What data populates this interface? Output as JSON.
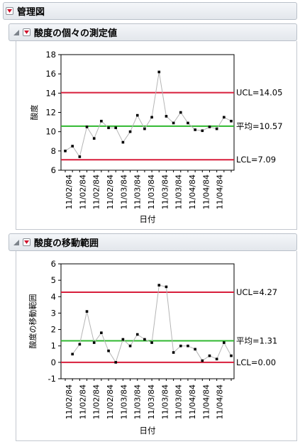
{
  "report": {
    "title": "管理図"
  },
  "charts": [
    {
      "section_title": "酸度の個々の測定値",
      "chart_data": {
        "type": "line",
        "title": "",
        "xlabel": "日付",
        "ylabel": "酸度",
        "ylim": [
          6,
          18
        ],
        "yticks": [
          6,
          8,
          10,
          12,
          14,
          16,
          18
        ],
        "x_tick_labels": [
          "11/02/84",
          "11/02/84",
          "11/02/84",
          "11/02/84",
          "11/03/84",
          "11/03/84",
          "11/03/84",
          "11/03/84",
          "11/03/84",
          "11/04/84",
          "11/04/84",
          "11/04/84"
        ],
        "values": [
          8.0,
          8.5,
          7.4,
          10.5,
          9.3,
          11.1,
          10.4,
          10.4,
          8.9,
          10.0,
          11.7,
          10.3,
          11.5,
          16.2,
          11.6,
          10.9,
          12.0,
          10.9,
          10.2,
          10.1,
          10.5,
          10.3,
          11.5,
          11.1
        ],
        "control_lines": [
          {
            "label": "UCL=14.05",
            "value": 14.05,
            "color": "#d81e3b"
          },
          {
            "label": "平均=10.57",
            "value": 10.57,
            "color": "#2fb82f"
          },
          {
            "label": "LCL=7.09",
            "value": 7.09,
            "color": "#d81e3b"
          }
        ],
        "grid": false
      }
    },
    {
      "section_title": "酸度の移動範囲",
      "chart_data": {
        "type": "line",
        "title": "",
        "xlabel": "日付",
        "ylabel": "酸度の移動範囲",
        "ylim": [
          -1,
          6
        ],
        "yticks": [
          -1,
          0,
          1,
          2,
          3,
          4,
          5,
          6
        ],
        "x_tick_labels": [
          "11/02/84",
          "11/02/84",
          "11/02/84",
          "11/02/84",
          "11/03/84",
          "11/03/84",
          "11/03/84",
          "11/03/84",
          "11/03/84",
          "11/04/84",
          "11/04/84",
          "11/04/84"
        ],
        "values": [
          null,
          0.5,
          1.1,
          3.1,
          1.2,
          1.8,
          0.7,
          0.0,
          1.4,
          1.0,
          1.7,
          1.4,
          1.2,
          4.7,
          4.6,
          0.6,
          1.0,
          1.0,
          0.8,
          0.1,
          0.4,
          0.2,
          1.2,
          0.4
        ],
        "control_lines": [
          {
            "label": "UCL=4.27",
            "value": 4.27,
            "color": "#d81e3b"
          },
          {
            "label": "平均=1.31",
            "value": 1.31,
            "color": "#2fb82f"
          },
          {
            "label": "LCL=0.00",
            "value": 0.0,
            "color": "#d81e3b"
          }
        ],
        "grid": false
      }
    }
  ]
}
